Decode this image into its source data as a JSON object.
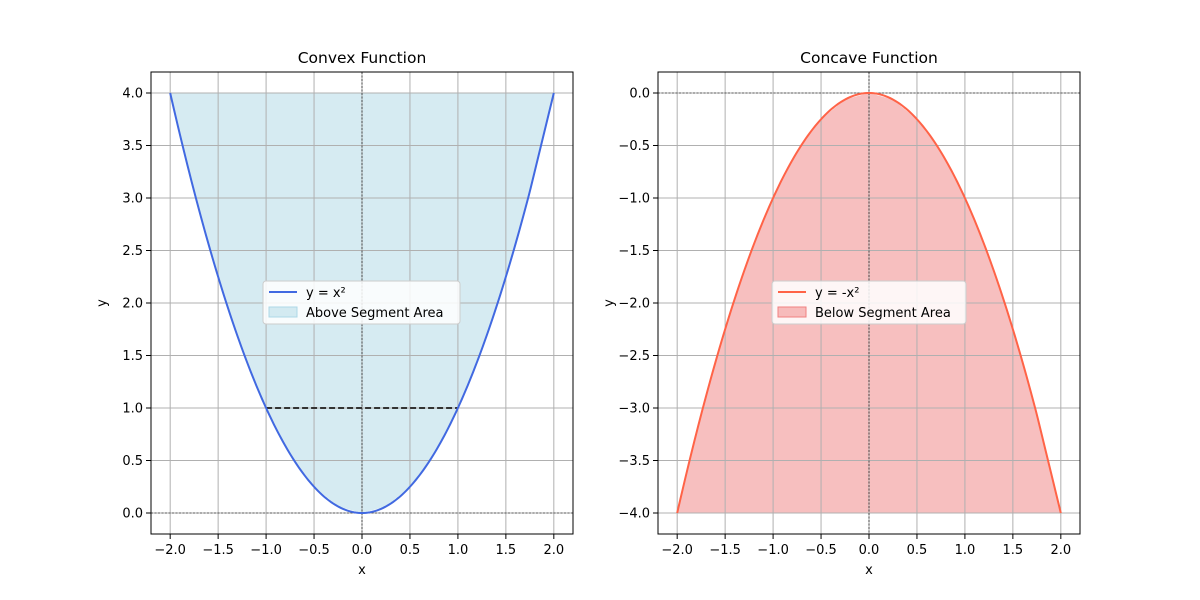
{
  "chart_data": [
    {
      "type": "line",
      "title": "Convex Function",
      "xlabel": "x",
      "ylabel": "y",
      "xlim": [
        -2.2,
        2.2
      ],
      "ylim": [
        -0.2,
        4.2
      ],
      "x_ticks": [
        -2.0,
        -1.5,
        -1.0,
        -0.5,
        0.0,
        0.5,
        1.0,
        1.5,
        2.0
      ],
      "y_ticks": [
        0.0,
        0.5,
        1.0,
        1.5,
        2.0,
        2.5,
        3.0,
        3.5,
        4.0
      ],
      "x_tick_labels": [
        "−2.0",
        "−1.5",
        "−1.0",
        "−0.5",
        "0.0",
        "0.5",
        "1.0",
        "1.5",
        "2.0"
      ],
      "y_tick_labels": [
        "0.0",
        "0.5",
        "1.0",
        "1.5",
        "2.0",
        "2.5",
        "3.0",
        "3.5",
        "4.0"
      ],
      "grid": true,
      "legend_position": "center",
      "series": [
        {
          "name": "y = x²",
          "color": "#4169e1",
          "x": [
            -2.0,
            -1.75,
            -1.5,
            -1.25,
            -1.0,
            -0.75,
            -0.5,
            -0.25,
            0.0,
            0.25,
            0.5,
            0.75,
            1.0,
            1.25,
            1.5,
            1.75,
            2.0
          ],
          "y": [
            4.0,
            3.0625,
            2.25,
            1.5625,
            1.0,
            0.5625,
            0.25,
            0.0625,
            0.0,
            0.0625,
            0.25,
            0.5625,
            1.0,
            1.5625,
            2.25,
            3.0625,
            4.0
          ]
        }
      ],
      "fill": {
        "name": "Above Segment Area",
        "color": "#add8e6",
        "between": "curve and y = 4.0",
        "level": 4.0
      },
      "segment": {
        "x": [
          -1.0,
          1.0
        ],
        "y": [
          1.0,
          1.0
        ],
        "color": "#333333",
        "style": "dashed"
      },
      "reference_lines": {
        "x": 0.0,
        "y": 0.0
      }
    },
    {
      "type": "line",
      "title": "Concave Function",
      "xlabel": "x",
      "ylabel": "y",
      "xlim": [
        -2.2,
        2.2
      ],
      "ylim": [
        -4.2,
        0.2
      ],
      "x_ticks": [
        -2.0,
        -1.5,
        -1.0,
        -0.5,
        0.0,
        0.5,
        1.0,
        1.5,
        2.0
      ],
      "y_ticks": [
        0.0,
        -0.5,
        -1.0,
        -1.5,
        -2.0,
        -2.5,
        -3.0,
        -3.5,
        -4.0
      ],
      "x_tick_labels": [
        "−2.0",
        "−1.5",
        "−1.0",
        "−0.5",
        "0.0",
        "0.5",
        "1.0",
        "1.5",
        "2.0"
      ],
      "y_tick_labels": [
        "0.0",
        "−0.5",
        "−1.0",
        "−1.5",
        "−2.0",
        "−2.5",
        "−3.0",
        "−3.5",
        "−4.0"
      ],
      "grid": true,
      "legend_position": "center",
      "series": [
        {
          "name": "y = -x²",
          "color": "#ff6347",
          "x": [
            -2.0,
            -1.75,
            -1.5,
            -1.25,
            -1.0,
            -0.75,
            -0.5,
            -0.25,
            0.0,
            0.25,
            0.5,
            0.75,
            1.0,
            1.25,
            1.5,
            1.75,
            2.0
          ],
          "y": [
            -4.0,
            -3.0625,
            -2.25,
            -1.5625,
            -1.0,
            -0.5625,
            -0.25,
            -0.0625,
            0.0,
            -0.0625,
            -0.25,
            -0.5625,
            -1.0,
            -1.5625,
            -2.25,
            -3.0625,
            -4.0
          ]
        }
      ],
      "fill": {
        "name": "Below Segment Area",
        "color": "#f08080",
        "between": "curve and y = -4.0",
        "level": -4.0
      },
      "reference_lines": {
        "x": 0.0,
        "y": 0.0
      }
    }
  ]
}
